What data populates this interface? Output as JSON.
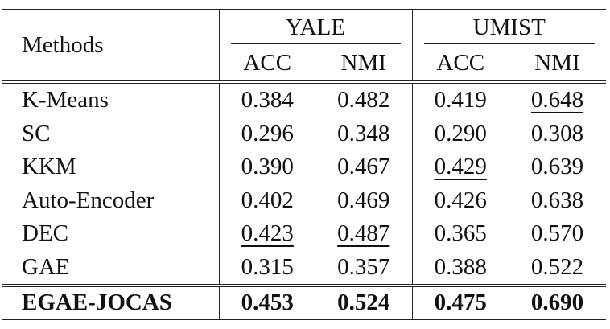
{
  "table": {
    "header": {
      "methods": "Methods",
      "groups": [
        "YALE",
        "UMIST"
      ],
      "subheaders": [
        "ACC",
        "NMI",
        "ACC",
        "NMI"
      ]
    },
    "rows": [
      {
        "method": "K-Means",
        "values": [
          "0.384",
          "0.482",
          "0.419",
          "0.648"
        ],
        "underlined": [
          3
        ],
        "bold": false
      },
      {
        "method": "SC",
        "values": [
          "0.296",
          "0.348",
          "0.290",
          "0.308"
        ],
        "underlined": [],
        "bold": false
      },
      {
        "method": "KKM",
        "values": [
          "0.390",
          "0.467",
          "0.429",
          "0.639"
        ],
        "underlined": [
          2
        ],
        "bold": false
      },
      {
        "method": "Auto-Encoder",
        "values": [
          "0.402",
          "0.469",
          "0.426",
          "0.638"
        ],
        "underlined": [],
        "bold": false
      },
      {
        "method": "DEC",
        "values": [
          "0.423",
          "0.487",
          "0.365",
          "0.570"
        ],
        "underlined": [
          0,
          1
        ],
        "bold": false
      },
      {
        "method": "GAE",
        "values": [
          "0.315",
          "0.357",
          "0.388",
          "0.522"
        ],
        "underlined": [],
        "bold": false
      },
      {
        "method": "EGAE-JOCAS",
        "values": [
          "0.453",
          "0.524",
          "0.475",
          "0.690"
        ],
        "underlined": [],
        "bold": true
      }
    ]
  }
}
